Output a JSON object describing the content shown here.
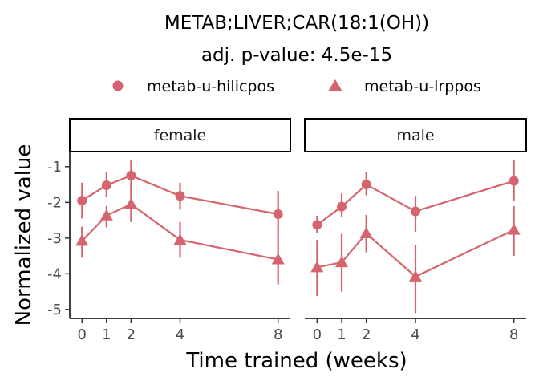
{
  "chart_data": {
    "type": "line",
    "title": "METAB;LIVER;CAR(18:1(OH))",
    "subtitle": "adj. p-value: 4.5e-15",
    "xlabel": "Time trained (weeks)",
    "ylabel": "Normalized value",
    "x_ticks": [
      0,
      1,
      2,
      4,
      8
    ],
    "y_ticks": [
      -1,
      -2,
      -3,
      -4,
      -5
    ],
    "xlim": [
      -0.5,
      8.5
    ],
    "ylim": [
      -5.25,
      -0.6
    ],
    "legend_position": "top",
    "color": "#d6646f",
    "series": [
      {
        "name": "metab-u-hilicpos",
        "shape": "circle"
      },
      {
        "name": "metab-u-lrppos",
        "shape": "triangle"
      }
    ],
    "panels": [
      {
        "label": "female",
        "series": [
          {
            "x": [
              0,
              1,
              2,
              4,
              8
            ],
            "y": [
              -1.95,
              -1.52,
              -1.25,
              -1.82,
              -2.33
            ],
            "err_low": [
              -2.45,
              -1.85,
              -1.65,
              -2.2,
              -2.95
            ],
            "err_high": [
              -1.45,
              -1.15,
              -0.8,
              -1.45,
              -1.68
            ]
          },
          {
            "x": [
              0,
              1,
              2,
              4,
              8
            ],
            "y": [
              -3.08,
              -2.37,
              -2.05,
              -3.05,
              -3.6
            ],
            "err_low": [
              -3.55,
              -2.7,
              -2.55,
              -3.55,
              -4.3
            ],
            "err_high": [
              -2.68,
              -2.1,
              -1.55,
              -2.55,
              -2.95
            ]
          }
        ]
      },
      {
        "label": "male",
        "series": [
          {
            "x": [
              0,
              1,
              2,
              4,
              8
            ],
            "y": [
              -2.63,
              -2.12,
              -1.5,
              -2.25,
              -1.4
            ],
            "err_low": [
              -2.85,
              -2.42,
              -1.8,
              -2.82,
              -1.95
            ],
            "err_high": [
              -2.37,
              -1.75,
              -1.15,
              -1.82,
              -0.8
            ]
          },
          {
            "x": [
              0,
              1,
              2,
              4,
              8
            ],
            "y": [
              -3.82,
              -3.68,
              -2.87,
              -4.08,
              -2.77
            ],
            "err_low": [
              -4.62,
              -4.5,
              -3.4,
              -5.1,
              -3.5
            ],
            "err_high": [
              -3.05,
              -2.88,
              -2.35,
              -3.2,
              -2.1
            ]
          }
        ]
      }
    ]
  }
}
